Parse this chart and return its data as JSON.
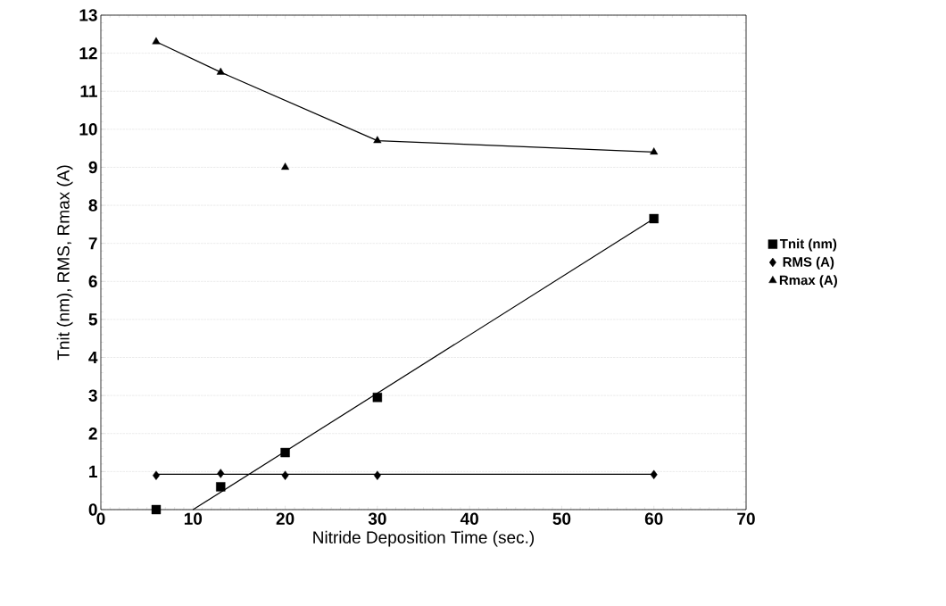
{
  "chart_data": {
    "type": "scatter",
    "xlabel": "Nitride Deposition Time (sec.)",
    "ylabel": "Tnit (nm), RMS, Rmax (A)",
    "x": [
      6,
      13,
      20,
      30,
      60
    ],
    "series": [
      {
        "name": "Tnit (nm)",
        "color": "#000000",
        "marker": "square",
        "values": [
          0.0,
          0.6,
          1.5,
          2.95,
          7.65
        ]
      },
      {
        "name": "RMS (A)",
        "color": "#000000",
        "marker": "diamond",
        "values": [
          0.9,
          0.95,
          0.9,
          0.9,
          0.92
        ]
      },
      {
        "name": "Rmax (A)",
        "color": "#000000",
        "marker": "triangle",
        "values": [
          12.3,
          11.5,
          9.0,
          9.7,
          9.4
        ]
      },
      {
        "type": "line",
        "color": "#000000",
        "marker": "none",
        "x": [
          10,
          60
        ],
        "values": [
          0,
          7.65
        ]
      },
      {
        "type": "line",
        "color": "#000000",
        "marker": "none",
        "x": [
          6,
          60
        ],
        "values": [
          0.93,
          0.93
        ]
      },
      {
        "type": "line",
        "color": "#000000",
        "marker": "none",
        "x": [
          6,
          13,
          30,
          60
        ],
        "values": [
          12.3,
          11.5,
          9.7,
          9.4
        ]
      }
    ],
    "xlim": [
      0,
      70
    ],
    "xticks": [
      0,
      10,
      20,
      30,
      40,
      50,
      60,
      70
    ],
    "ylim": [
      0,
      13
    ],
    "yticks": [
      0,
      1,
      2,
      3,
      4,
      5,
      6,
      7,
      8,
      9,
      10,
      11,
      12,
      13
    ],
    "grid": "y",
    "legend": "right"
  }
}
